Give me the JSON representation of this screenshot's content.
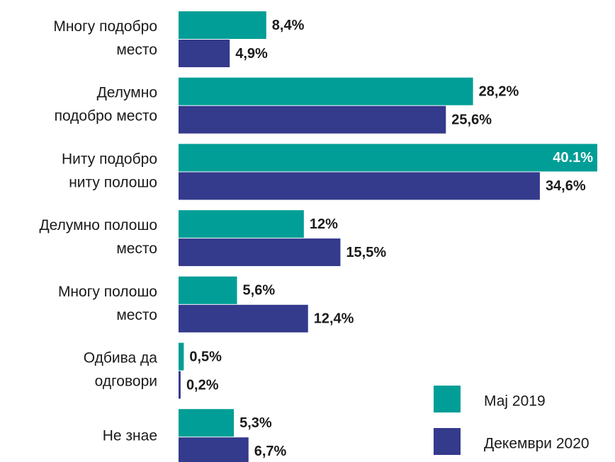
{
  "chart_data": {
    "type": "bar",
    "orientation": "horizontal",
    "categories": [
      [
        "Многу подобро",
        "место"
      ],
      [
        "Делумно",
        "подобро место"
      ],
      [
        "Ниту подобро",
        "ниту полошо"
      ],
      [
        "Делумно полошо",
        "место"
      ],
      [
        "Многу полошо",
        "место"
      ],
      [
        "Одбива да",
        "одговори"
      ],
      [
        "Не знае"
      ]
    ],
    "series": [
      {
        "name": "Мај 2019",
        "color": "#009e96",
        "values": [
          8.4,
          28.2,
          40.1,
          12,
          5.6,
          0.5,
          5.3
        ],
        "value_labels": [
          "8,4%",
          "28,2%",
          "40.1%",
          "12%",
          "5,6%",
          "0,5%",
          "5,3%"
        ]
      },
      {
        "name": "Декември 2020",
        "color": "#343a8c",
        "values": [
          4.9,
          25.6,
          34.6,
          15.5,
          12.4,
          0.2,
          6.7
        ],
        "value_labels": [
          "4,9%",
          "25,6%",
          "34,6%",
          "15,5%",
          "12,4%",
          "0,2%",
          "6,7%"
        ]
      }
    ],
    "legend": "bottom-right"
  }
}
